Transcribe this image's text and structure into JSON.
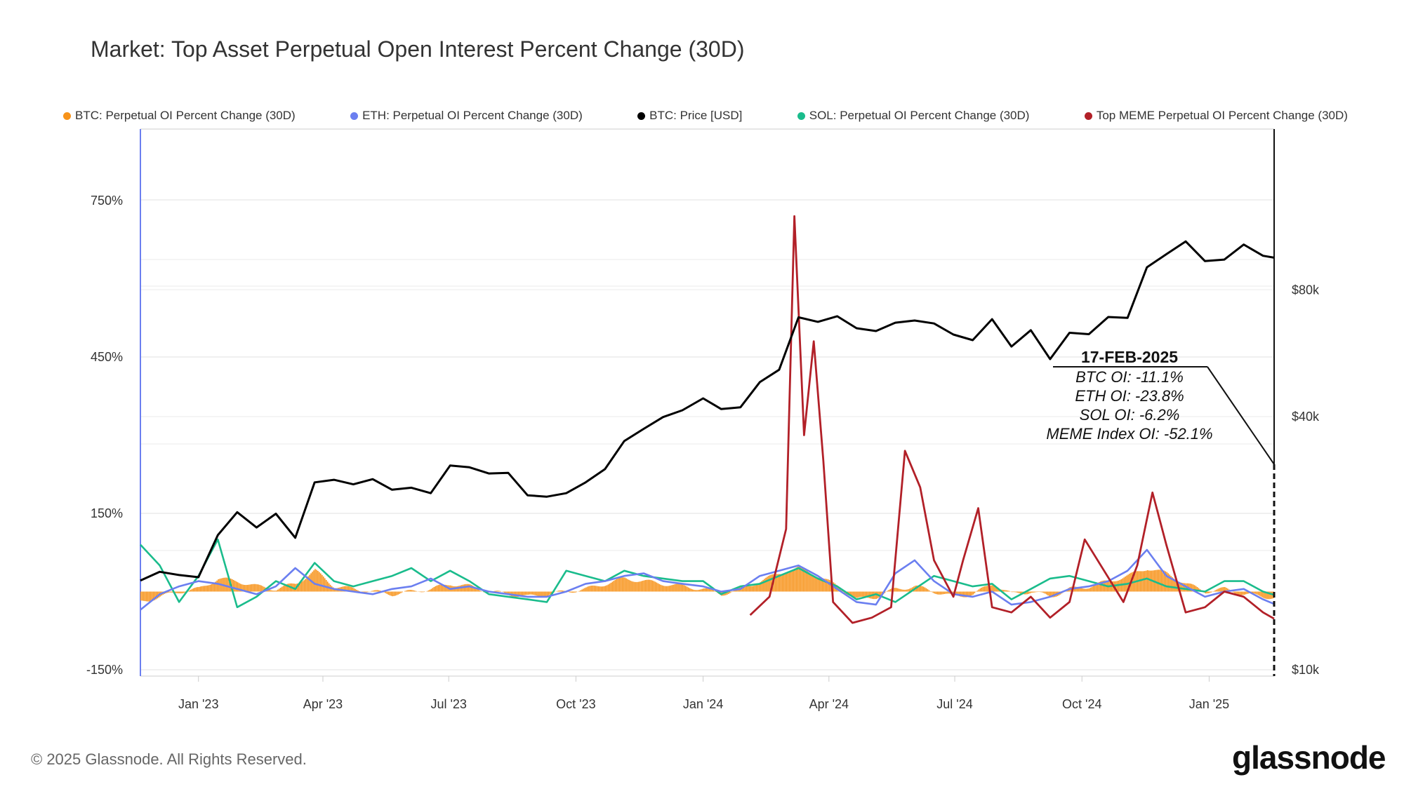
{
  "chart_data": {
    "type": "line",
    "title": "Market: Top Asset Perpetual Open Interest Percent Change (30D)",
    "legend_placement": "top",
    "grid": true,
    "x_ticks": [
      "Jan '23",
      "Apr '23",
      "Jul '23",
      "Oct '23",
      "Jan '24",
      "Apr '24",
      "Jul '24",
      "Oct '24",
      "Jan '25"
    ],
    "y_left": {
      "ticks": [
        "750%",
        "450%",
        "150%",
        "-150%"
      ],
      "range": [
        -150,
        900
      ]
    },
    "y_right": {
      "scale": "log",
      "ticks": [
        "$80k",
        "$40k",
        "$10k"
      ],
      "range": [
        10000,
        200000
      ]
    },
    "x_range": [
      "2022-11-20",
      "2025-02-17"
    ],
    "dates": [
      "2022-11-20",
      "2022-12-04",
      "2022-12-18",
      "2023-01-01",
      "2023-01-15",
      "2023-01-29",
      "2023-02-12",
      "2023-02-26",
      "2023-03-12",
      "2023-03-26",
      "2023-04-09",
      "2023-04-23",
      "2023-05-07",
      "2023-05-21",
      "2023-06-04",
      "2023-06-18",
      "2023-07-02",
      "2023-07-16",
      "2023-07-30",
      "2023-08-13",
      "2023-08-27",
      "2023-09-10",
      "2023-09-24",
      "2023-10-08",
      "2023-10-22",
      "2023-11-05",
      "2023-11-19",
      "2023-12-03",
      "2023-12-17",
      "2024-01-01",
      "2024-01-14",
      "2024-01-28",
      "2024-02-11",
      "2024-02-25",
      "2024-03-10",
      "2024-03-24",
      "2024-04-07",
      "2024-04-21",
      "2024-05-05",
      "2024-05-19",
      "2024-06-02",
      "2024-06-16",
      "2024-06-30",
      "2024-07-14",
      "2024-07-28",
      "2024-08-11",
      "2024-08-25",
      "2024-09-08",
      "2024-09-22",
      "2024-10-06",
      "2024-10-20",
      "2024-11-03",
      "2024-11-17",
      "2024-12-01",
      "2024-12-15",
      "2024-12-29",
      "2025-01-12",
      "2025-01-26",
      "2025-02-09",
      "2025-02-17"
    ],
    "series": [
      {
        "name": "BTC: Perpetual OI Percent Change (30D)",
        "color": "#f7931a",
        "axis": "left",
        "style": "bar",
        "values": [
          -20,
          -10,
          0,
          5,
          25,
          20,
          10,
          5,
          15,
          40,
          10,
          5,
          0,
          -5,
          0,
          5,
          15,
          10,
          0,
          -5,
          -10,
          -5,
          0,
          5,
          15,
          25,
          20,
          15,
          10,
          5,
          -5,
          5,
          20,
          35,
          45,
          30,
          10,
          -15,
          -10,
          5,
          10,
          0,
          -10,
          -5,
          15,
          -5,
          0,
          -10,
          5,
          10,
          20,
          30,
          45,
          35,
          15,
          0,
          5,
          -5,
          -10,
          -11.1
        ]
      },
      {
        "name": "ETH: Perpetual OI Percent Change (30D)",
        "color": "#6b7ff0",
        "axis": "left",
        "style": "line",
        "values": [
          -35,
          -5,
          10,
          20,
          15,
          5,
          -5,
          10,
          45,
          15,
          5,
          0,
          -5,
          5,
          10,
          25,
          5,
          10,
          0,
          -5,
          -10,
          -10,
          0,
          15,
          20,
          30,
          35,
          20,
          15,
          10,
          0,
          5,
          30,
          40,
          50,
          30,
          5,
          -20,
          -25,
          35,
          60,
          20,
          -5,
          -10,
          0,
          -25,
          -20,
          -10,
          5,
          10,
          20,
          40,
          80,
          30,
          10,
          -10,
          0,
          5,
          -15,
          -23.8
        ]
      },
      {
        "name": "BTC: Price [USD]",
        "color": "#000000",
        "axis": "right",
        "style": "line",
        "values": [
          16300,
          17100,
          16800,
          16600,
          20900,
          23700,
          21800,
          23500,
          20600,
          27900,
          28300,
          27600,
          28400,
          26800,
          27100,
          26300,
          30600,
          30300,
          29300,
          29400,
          26000,
          25800,
          26300,
          27900,
          30000,
          35000,
          37400,
          39900,
          41400,
          44200,
          41700,
          42100,
          48300,
          51700,
          68900,
          67200,
          69300,
          64900,
          63900,
          66900,
          67700,
          66600,
          62700,
          60800,
          68200,
          58700,
          64200,
          54800,
          63300,
          62800,
          69000,
          68700,
          90600,
          97300,
          104400,
          93700,
          94500,
          102600,
          96500,
          95500
        ]
      },
      {
        "name": "SOL: Perpetual OI Percent Change (30D)",
        "color": "#1abc8c",
        "axis": "left",
        "style": "line",
        "values": [
          90,
          50,
          -20,
          30,
          100,
          -30,
          -10,
          20,
          5,
          55,
          20,
          10,
          20,
          30,
          45,
          20,
          40,
          20,
          -5,
          -10,
          -15,
          -20,
          40,
          30,
          20,
          40,
          30,
          25,
          20,
          20,
          -5,
          10,
          15,
          30,
          45,
          25,
          10,
          -15,
          -5,
          -20,
          5,
          30,
          20,
          10,
          15,
          -15,
          5,
          25,
          30,
          20,
          10,
          15,
          25,
          10,
          5,
          0,
          20,
          20,
          0,
          -6.2
        ]
      }
    ],
    "meme_series": {
      "name": "Top MEME Perpetual OI Percent Change (30D)",
      "color": "#b22028",
      "axis": "left",
      "style": "line",
      "dates": [
        "2024-02-04",
        "2024-02-18",
        "2024-03-01",
        "2024-03-07",
        "2024-03-14",
        "2024-03-21",
        "2024-03-28",
        "2024-04-04",
        "2024-04-18",
        "2024-05-02",
        "2024-05-16",
        "2024-05-26",
        "2024-06-06",
        "2024-06-16",
        "2024-06-30",
        "2024-07-07",
        "2024-07-18",
        "2024-07-28",
        "2024-08-11",
        "2024-08-25",
        "2024-09-08",
        "2024-09-22",
        "2024-10-03",
        "2024-10-17",
        "2024-10-31",
        "2024-11-10",
        "2024-11-21",
        "2024-12-01",
        "2024-12-15",
        "2024-12-29",
        "2025-01-12",
        "2025-01-26",
        "2025-02-09",
        "2025-02-17"
      ],
      "values": [
        -45,
        -10,
        120,
        720,
        300,
        480,
        250,
        -20,
        -60,
        -50,
        -30,
        270,
        200,
        60,
        -10,
        60,
        160,
        -30,
        -40,
        -10,
        -50,
        -20,
        100,
        40,
        -20,
        50,
        190,
        90,
        -40,
        -30,
        0,
        -10,
        -40,
        -52.1
      ]
    },
    "annotation": {
      "date": "17-FEB-2025",
      "lines": [
        "BTC OI: -11.1%",
        "ETH OI: -23.8%",
        "SOL OI: -6.2%",
        "MEME Index OI: -52.1%"
      ]
    }
  },
  "legend": [
    {
      "label": "BTC: Perpetual OI Percent Change (30D)",
      "color": "#f7931a"
    },
    {
      "label": "ETH: Perpetual OI Percent Change (30D)",
      "color": "#6b7ff0"
    },
    {
      "label": "BTC: Price [USD]",
      "color": "#000000"
    },
    {
      "label": "SOL: Perpetual OI Percent Change (30D)",
      "color": "#1abc8c"
    },
    {
      "label": "Top MEME Perpetual OI Percent Change (30D)",
      "color": "#b22028"
    }
  ],
  "footer": {
    "copyright": "© 2025 Glassnode. All Rights Reserved.",
    "logo": "glassnode"
  }
}
